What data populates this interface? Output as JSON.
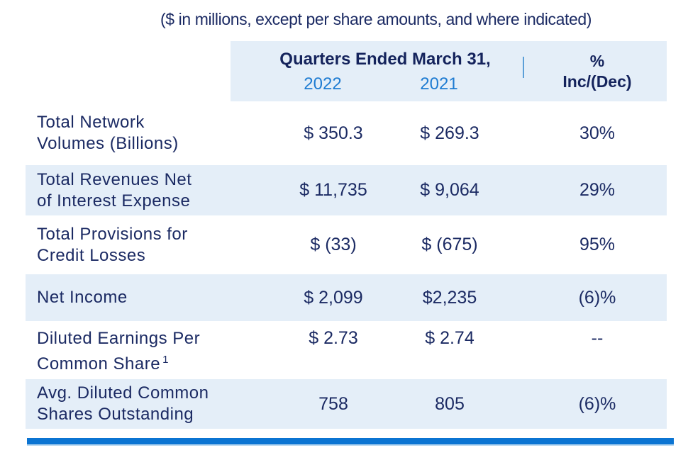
{
  "subtitle": "($ in millions, except per share amounts, and where indicated)",
  "header": {
    "group": "Quarters Ended March 31,",
    "year1": "2022",
    "year2": "2021",
    "pct_top": "%",
    "pct_bottom": "Inc/(Dec)"
  },
  "rows": [
    {
      "l1": "Total Network",
      "l2": "Volumes (Billions)",
      "v2022": "$ 350.3",
      "v2021": "$ 269.3",
      "pct": "30%"
    },
    {
      "l1": "Total Revenues Net",
      "l2": "of Interest Expense",
      "v2022": "$ 11,735",
      "v2021": "$ 9,064",
      "pct": "29%"
    },
    {
      "l1": "Total Provisions for",
      "l2": "Credit Losses",
      "v2022": "$ (33)",
      "v2021": "$ (675)",
      "pct": "95%"
    },
    {
      "l1": "Net Income",
      "l2": "",
      "v2022": "$ 2,099",
      "v2021": "$2,235",
      "pct": "(6)%"
    },
    {
      "l1": "Diluted Earnings Per",
      "l2": "Common Share",
      "sup": "1",
      "v2022": "$ 2.73",
      "v2021": "$ 2.74",
      "pct": "--"
    },
    {
      "l1": "Avg. Diluted Common",
      "l2": "Shares Outstanding",
      "v2022": "758",
      "v2021": "805",
      "pct": "(6)%"
    }
  ],
  "colors": {
    "navy_text": "#1b2a63",
    "header_navy": "#14235c",
    "accent_blue": "#1f7cd2",
    "band_blue": "#e4eef8",
    "separator_blue": "#5b9fd8",
    "bottom_bar_blue": "#0b74d2"
  }
}
